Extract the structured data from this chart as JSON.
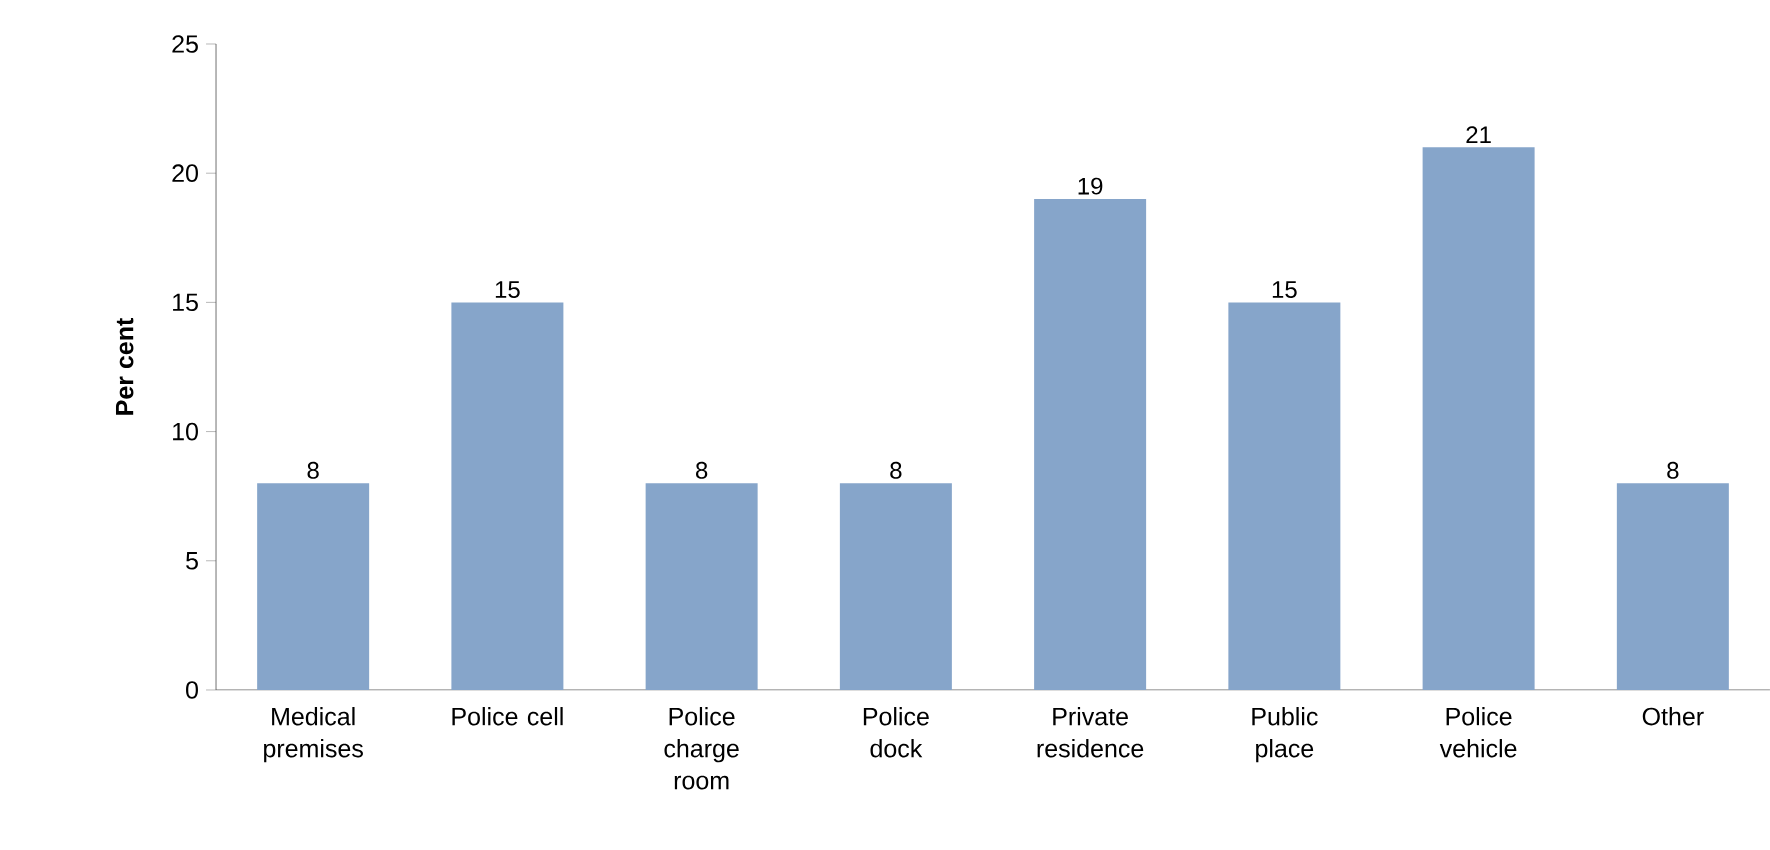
{
  "chart_data": {
    "type": "bar",
    "ylabel": "Per cent",
    "categories": [
      "Medical premises",
      "Police cell",
      "Police charge room",
      "Police dock",
      "Private residence",
      "Public place",
      "Police vehicle",
      "Other"
    ],
    "values": [
      8,
      15,
      8,
      8,
      19,
      15,
      21,
      8
    ],
    "color": "#86a5ca",
    "ylim": [
      0,
      25
    ],
    "yticks": [
      0,
      5,
      10,
      15,
      20,
      25
    ],
    "data_labels": true,
    "grid": false
  }
}
